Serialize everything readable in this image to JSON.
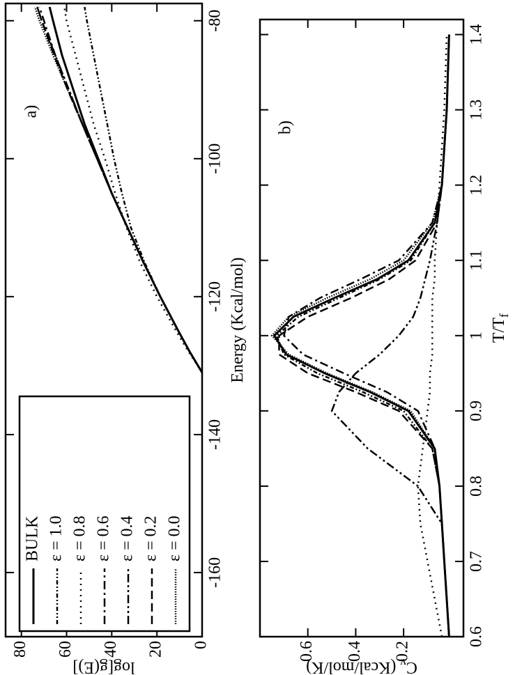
{
  "chart_data": [
    {
      "type": "line",
      "annotation": "a)",
      "xlabel": "Energy (Kcal/mol)",
      "ylabel": "log[g(E)]",
      "x": [
        -131,
        -128,
        -125,
        -120,
        -115,
        -110,
        -105,
        -100,
        -95,
        -90,
        -85,
        -80,
        -78
      ],
      "xlim": [
        -169.3,
        -77.5
      ],
      "xticks": [
        -160,
        -140,
        -120,
        -100,
        -80
      ],
      "ylim": [
        0,
        87
      ],
      "yticks": [
        0,
        20,
        40,
        60,
        80
      ],
      "legend": "upper left",
      "series": [
        {
          "name": "BULK",
          "color": "#000000",
          "dash": "solid",
          "values": [
            0,
            5.5,
            10.5,
            18.5,
            26,
            33,
            40,
            46,
            52,
            57,
            62,
            66,
            67.5
          ]
        },
        {
          "name": "ε = 1.0",
          "color": "#000000",
          "dash": "dash-dot-dot-fine",
          "values": [
            0,
            5.5,
            10.5,
            18.5,
            25.5,
            31.5,
            35.5,
            39,
            42,
            45,
            48,
            51,
            52
          ]
        },
        {
          "name": "ε = 0.8",
          "color": "#000000",
          "dash": "dotted",
          "values": [
            0,
            6,
            11.5,
            20,
            27.5,
            33.5,
            38.5,
            43,
            48,
            52,
            56,
            60,
            61
          ]
        },
        {
          "name": "ε = 0.6",
          "color": "#000000",
          "dash": "dash-dot",
          "values": [
            0,
            5.5,
            10.5,
            18.5,
            26,
            33,
            40,
            46.5,
            53,
            59,
            65,
            70,
            72
          ]
        },
        {
          "name": "ε = 0.4",
          "color": "#000000",
          "dash": "dash-dot-dot",
          "values": [
            0,
            5.5,
            10.5,
            18.5,
            26,
            33,
            40,
            46.5,
            53,
            59,
            65,
            71,
            73
          ]
        },
        {
          "name": "ε = 0.2",
          "color": "#000000",
          "dash": "dashed",
          "values": [
            0,
            5.5,
            10.5,
            18.5,
            26,
            33,
            40,
            46.5,
            53,
            59.5,
            65.5,
            71,
            73
          ]
        },
        {
          "name": "ε = 0.0",
          "color": "#000000",
          "dash": "fine-dotted",
          "values": [
            0,
            5.5,
            10.5,
            18.5,
            26,
            33,
            40,
            46.5,
            53,
            59.5,
            66,
            72,
            74
          ]
        }
      ]
    },
    {
      "type": "line",
      "annotation": "b)",
      "xlabel": "T/T",
      "xlabel_sub": "f",
      "ylabel": "C",
      "ylabel_sub": "v",
      "ylabel_rest": " (Kcal/mol/K)",
      "x": [
        0.6,
        0.65,
        0.7,
        0.75,
        0.8,
        0.85,
        0.9,
        0.925,
        0.95,
        0.975,
        1.0,
        1.025,
        1.05,
        1.075,
        1.1,
        1.15,
        1.2,
        1.3,
        1.4
      ],
      "xlim": [
        0.6,
        1.42
      ],
      "xticks": [
        0.6,
        0.7,
        0.8,
        0.9,
        1,
        1.1,
        1.2,
        1.3,
        1.4
      ],
      "ylim": [
        -0.05,
        0.8
      ],
      "yticks": [
        0.2,
        0.4,
        0.6
      ],
      "series": [
        {
          "color": "#000000",
          "dash": "solid",
          "values": [
            0.01,
            0.02,
            0.03,
            0.04,
            0.05,
            0.07,
            0.18,
            0.34,
            0.53,
            0.69,
            0.74,
            0.66,
            0.49,
            0.31,
            0.18,
            0.07,
            0.04,
            0.02,
            0.01
          ]
        },
        {
          "color": "#000000",
          "dash": "dash-dot-dot-fine",
          "values": [
            0.01,
            0.02,
            0.03,
            0.04,
            0.05,
            0.08,
            0.2,
            0.37,
            0.56,
            0.7,
            0.73,
            0.64,
            0.47,
            0.3,
            0.17,
            0.07,
            0.04,
            0.02,
            0.01
          ]
        },
        {
          "color": "#000000",
          "dash": "dotted",
          "values": [
            0.04,
            0.07,
            0.1,
            0.13,
            0.14,
            0.12,
            0.1,
            0.09,
            0.09,
            0.08,
            0.08,
            0.08,
            0.08,
            0.07,
            0.07,
            0.06,
            0.05,
            0.03,
            0.02
          ]
        },
        {
          "color": "#000000",
          "dash": "dash-dot",
          "values": [
            0.01,
            0.02,
            0.03,
            0.04,
            0.05,
            0.07,
            0.14,
            0.27,
            0.45,
            0.62,
            0.7,
            0.68,
            0.55,
            0.38,
            0.22,
            0.08,
            0.04,
            0.02,
            0.01
          ]
        },
        {
          "color": "#000000",
          "dash": "dash-dot-dot",
          "values": [
            0.01,
            0.02,
            0.03,
            0.04,
            0.14,
            0.35,
            0.5,
            0.47,
            0.4,
            0.3,
            0.22,
            0.16,
            0.13,
            0.11,
            0.09,
            0.06,
            0.04,
            0.02,
            0.01
          ]
        },
        {
          "color": "#000000",
          "dash": "dashed",
          "values": [
            0.01,
            0.02,
            0.03,
            0.04,
            0.05,
            0.08,
            0.22,
            0.4,
            0.6,
            0.72,
            0.72,
            0.6,
            0.42,
            0.26,
            0.15,
            0.06,
            0.04,
            0.02,
            0.01
          ]
        },
        {
          "color": "#000000",
          "dash": "fine-dotted",
          "values": [
            0.01,
            0.02,
            0.03,
            0.04,
            0.05,
            0.07,
            0.17,
            0.33,
            0.52,
            0.68,
            0.75,
            0.68,
            0.52,
            0.34,
            0.2,
            0.08,
            0.04,
            0.02,
            0.01
          ]
        }
      ]
    }
  ]
}
